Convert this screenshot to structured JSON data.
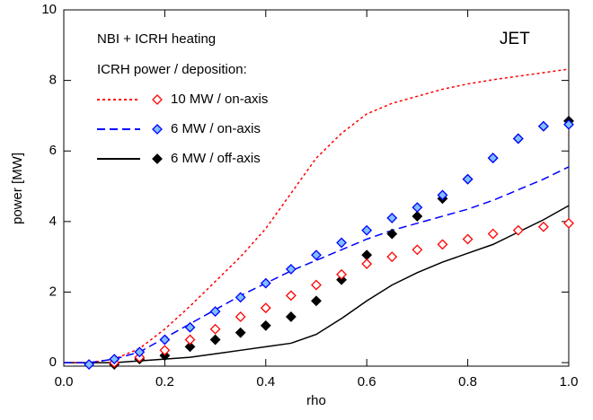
{
  "chart_data": {
    "type": "line",
    "title": "NBI + ICRH heating",
    "legend_title": "ICRH power / deposition:",
    "annotation": "JET",
    "x_label": "rho",
    "y_label": "power [MW]",
    "x": [
      0,
      0.05,
      0.1,
      0.15,
      0.2,
      0.25,
      0.3,
      0.35,
      0.4,
      0.45,
      0.5,
      0.55,
      0.6,
      0.65,
      0.7,
      0.75,
      0.8,
      0.85,
      0.9,
      0.95,
      1.0
    ],
    "xlim": [
      0,
      1
    ],
    "ylim": [
      -0.1,
      10
    ],
    "xticks": [
      {
        "value": 0,
        "label": "0.0"
      },
      {
        "value": 0.2,
        "label": "0.2"
      },
      {
        "value": 0.4,
        "label": "0.4"
      },
      {
        "value": 0.6,
        "label": "0.6"
      },
      {
        "value": 0.8,
        "label": "0.8"
      },
      {
        "value": 1.0,
        "label": "1.0"
      }
    ],
    "yticks": [
      0,
      2,
      4,
      6,
      8,
      10
    ],
    "series": [
      {
        "name": "6 MW / off-axis",
        "color": "#000000",
        "dash": "solid",
        "marker_fill": "#000000",
        "values": [
          0,
          0,
          0,
          0.05,
          0.1,
          0.15,
          0.25,
          0.35,
          0.45,
          0.55,
          0.8,
          1.25,
          1.75,
          2.2,
          2.55,
          2.85,
          3.1,
          3.35,
          3.7,
          4.05,
          4.45
        ],
        "markers": [
          null,
          null,
          -0.05,
          0.1,
          0.2,
          0.45,
          0.65,
          0.85,
          1.05,
          1.3,
          1.75,
          2.35,
          3.05,
          3.65,
          4.15,
          4.65,
          5.2,
          5.8,
          6.35,
          6.7,
          6.85
        ]
      },
      {
        "name": "10 MW / on-axis",
        "color": "#ff0000",
        "dash": "dotted",
        "marker_fill": "#ffffff",
        "values": [
          0,
          0,
          0.1,
          0.4,
          0.95,
          1.6,
          2.3,
          3.0,
          3.8,
          4.8,
          5.8,
          6.5,
          7.05,
          7.35,
          7.55,
          7.75,
          7.9,
          8.02,
          8.12,
          8.22,
          8.32
        ],
        "markers": [
          null,
          null,
          0,
          0.15,
          0.35,
          0.65,
          0.95,
          1.3,
          1.55,
          1.9,
          2.2,
          2.5,
          2.8,
          3.0,
          3.2,
          3.35,
          3.5,
          3.65,
          3.75,
          3.85,
          3.95
        ]
      },
      {
        "name": "6 MW / on-axis",
        "color": "#0000ff",
        "dash": "dashed",
        "marker_fill": "#7fbfff",
        "values": [
          0,
          0,
          0.1,
          0.3,
          0.7,
          1.1,
          1.5,
          1.9,
          2.25,
          2.6,
          2.9,
          3.2,
          3.5,
          3.75,
          3.95,
          4.15,
          4.35,
          4.6,
          4.9,
          5.2,
          5.55
        ],
        "markers": [
          null,
          -0.05,
          0.1,
          0.3,
          0.65,
          1.0,
          1.45,
          1.85,
          2.25,
          2.65,
          3.05,
          3.4,
          3.75,
          4.1,
          4.4,
          4.75,
          5.2,
          5.8,
          6.35,
          6.7,
          6.75
        ]
      }
    ],
    "legend_order": [
      1,
      2,
      0
    ]
  }
}
